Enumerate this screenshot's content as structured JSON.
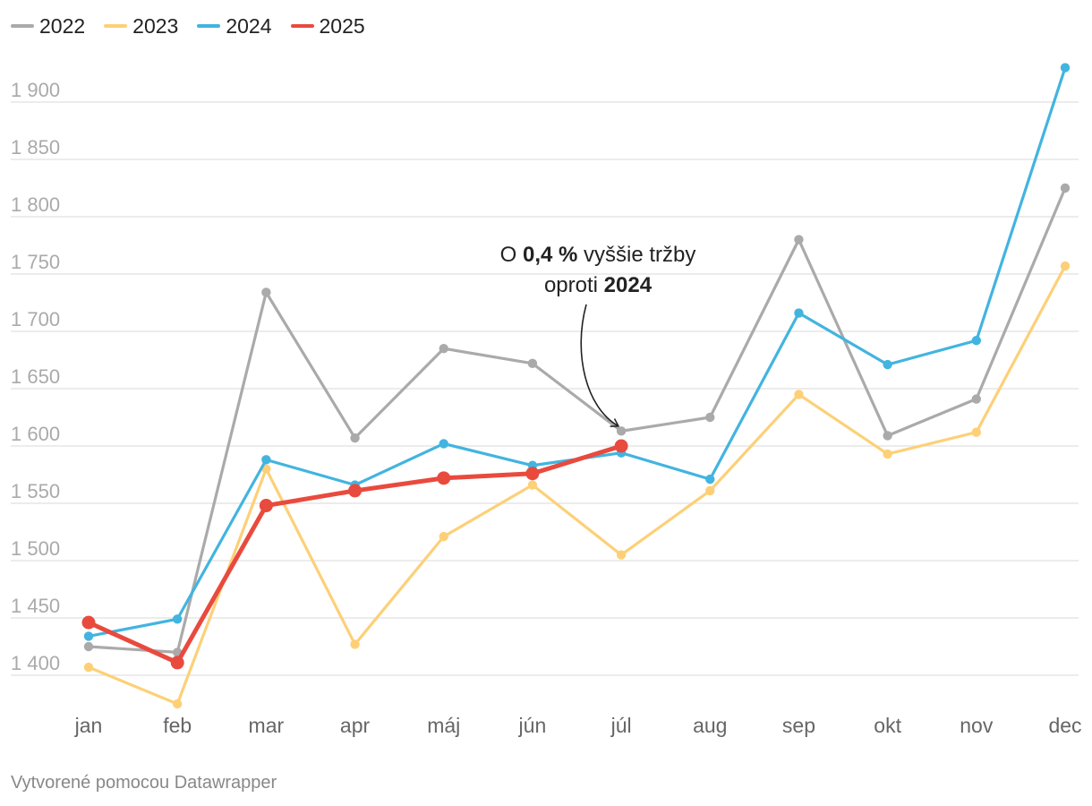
{
  "chart_data": {
    "type": "line",
    "title": "",
    "xlabel": "",
    "ylabel": "",
    "categories": [
      "jan",
      "feb",
      "mar",
      "apr",
      "máj",
      "jún",
      "júl",
      "aug",
      "sep",
      "okt",
      "nov",
      "dec"
    ],
    "ylim": [
      1370,
      1935
    ],
    "yticks": [
      1400,
      1450,
      1500,
      1550,
      1600,
      1650,
      1700,
      1750,
      1800,
      1850,
      1900
    ],
    "ytick_labels": [
      "1 400",
      "1 450",
      "1 500",
      "1 550",
      "1 600",
      "1 650",
      "1 700",
      "1 750",
      "1 800",
      "1 850",
      "1 900"
    ],
    "grid": true,
    "legend_position": "top-left",
    "series": [
      {
        "name": "2022",
        "color": "#aaaaaa",
        "values": [
          1425,
          1420,
          1734,
          1607,
          1685,
          1672,
          1613,
          1625,
          1780,
          1609,
          1641,
          1825
        ]
      },
      {
        "name": "2023",
        "color": "#fdd078",
        "values": [
          1407,
          1375,
          1580,
          1427,
          1521,
          1566,
          1505,
          1561,
          1645,
          1593,
          1612,
          1757
        ]
      },
      {
        "name": "2024",
        "color": "#42b4e0",
        "values": [
          1434,
          1449,
          1588,
          1566,
          1602,
          1583,
          1594,
          1571,
          1716,
          1671,
          1692,
          1930
        ]
      },
      {
        "name": "2025",
        "color": "#e94a3e",
        "values": [
          1446,
          1411,
          1548,
          1561,
          1572,
          1576,
          1600,
          null,
          null,
          null,
          null,
          null
        ]
      }
    ],
    "annotation": {
      "line1_prefix": "O ",
      "line1_bold": "0,4 %",
      "line1_suffix": " vyššie tržby",
      "line2_prefix": "oproti ",
      "line2_bold": "2024",
      "target_category": "júl",
      "target_value": 1613
    }
  },
  "footer": {
    "text": "Vytvorené pomocou Datawrapper"
  }
}
